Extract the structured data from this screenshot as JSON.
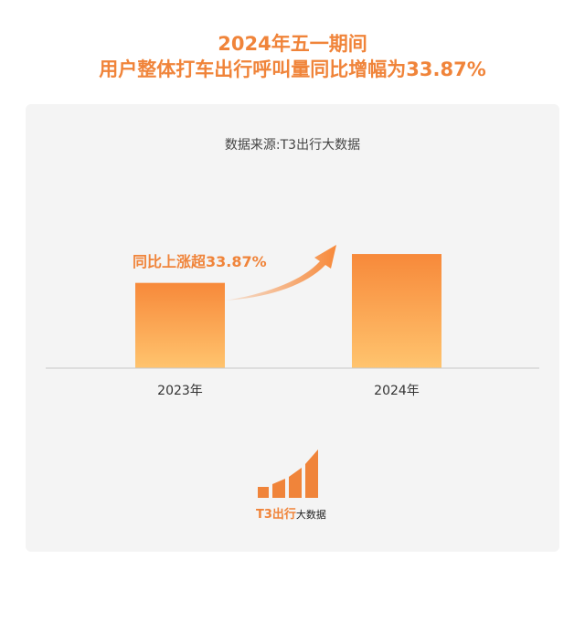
{
  "title_line1": "2024年五一期间",
  "title_line2": "用户整体打车出行呼叫量同比增幅为33.87%",
  "source": "数据来源:T3出行大数据",
  "annotation": "同比上涨超33.87%",
  "brand": {
    "name": "T3出行",
    "sub": "大数据"
  },
  "colors": {
    "accent": "#f0843a",
    "bar_top": "#f7893a",
    "bar_bottom": "#ffc46e"
  },
  "chart_data": {
    "type": "bar",
    "categories": [
      "2023年",
      "2024年"
    ],
    "values": [
      100,
      133.87
    ],
    "title": "用户整体打车出行呼叫量同比增幅为33.87%",
    "xlabel": "",
    "ylabel": "",
    "ylim": [
      0,
      150
    ],
    "grid": false,
    "legend": "none"
  }
}
